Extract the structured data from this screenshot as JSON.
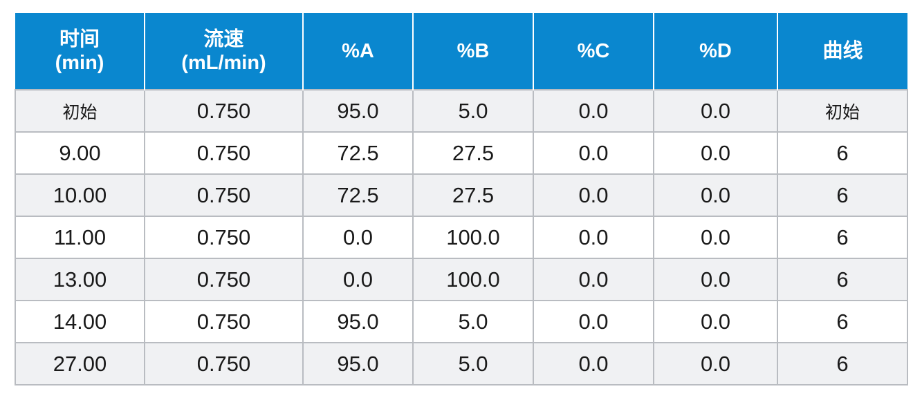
{
  "headers": [
    {
      "line1": "时间",
      "line2": "(min)"
    },
    {
      "line1": "流速",
      "line2": "(mL/min)"
    },
    {
      "line1": "%A",
      "line2": ""
    },
    {
      "line1": "%B",
      "line2": ""
    },
    {
      "line1": "%C",
      "line2": ""
    },
    {
      "line1": "%D",
      "line2": ""
    },
    {
      "line1": "曲线",
      "line2": ""
    }
  ],
  "rows": [
    [
      "初始",
      "0.750",
      "95.0",
      "5.0",
      "0.0",
      "0.0",
      "初始"
    ],
    [
      "9.00",
      "0.750",
      "72.5",
      "27.5",
      "0.0",
      "0.0",
      "6"
    ],
    [
      "10.00",
      "0.750",
      "72.5",
      "27.5",
      "0.0",
      "0.0",
      "6"
    ],
    [
      "11.00",
      "0.750",
      "0.0",
      "100.0",
      "0.0",
      "0.0",
      "6"
    ],
    [
      "13.00",
      "0.750",
      "0.0",
      "100.0",
      "0.0",
      "0.0",
      "6"
    ],
    [
      "14.00",
      "0.750",
      "95.0",
      "5.0",
      "0.0",
      "0.0",
      "6"
    ],
    [
      "27.00",
      "0.750",
      "95.0",
      "5.0",
      "0.0",
      "0.0",
      "6"
    ]
  ],
  "colors": {
    "header_bg": "#0a87cf",
    "header_text": "#ffffff",
    "row_shade": "#f0f1f3",
    "grid_line": "#b9bcc1"
  }
}
